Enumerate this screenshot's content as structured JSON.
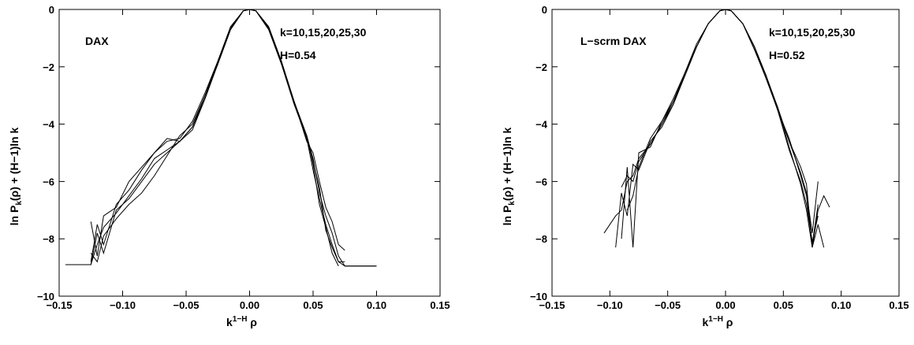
{
  "chart_data": [
    {
      "type": "line",
      "annotations": [
        "DAX",
        "k=10,15,20,25,30",
        "H=0.54"
      ],
      "xlabel": {
        "base": "k",
        "sup": "1−H",
        "rest": " ρ"
      },
      "ylabel": {
        "base": "ln P",
        "sub": "k",
        "rest": "(ρ) + (H−1)ln k"
      },
      "xlim": [
        -0.15,
        0.15
      ],
      "xticks": [
        {
          "value": -0.15,
          "label": "−0.15"
        },
        {
          "value": -0.1,
          "label": "−0.10"
        },
        {
          "value": -0.05,
          "label": "−0.05"
        },
        {
          "value": 0,
          "label": "0.00"
        },
        0.05,
        {
          "value": 0.1,
          "label": "0.10"
        },
        0.15
      ],
      "ylim": [
        -10,
        0
      ],
      "yticks": [
        {
          "value": -10,
          "label": "−10"
        },
        {
          "value": -8,
          "label": "−8"
        },
        {
          "value": -6,
          "label": "−6"
        },
        {
          "value": -4,
          "label": "−4"
        },
        {
          "value": -2,
          "label": "−2"
        },
        0
      ],
      "x": [
        -0.145,
        -0.125,
        -0.12,
        -0.115,
        -0.105,
        -0.095,
        -0.085,
        -0.075,
        -0.065,
        -0.055,
        -0.045,
        -0.035,
        -0.025,
        -0.015,
        -0.005,
        0,
        0.005,
        0.015,
        0.025,
        0.035,
        0.045,
        0.05,
        0.055,
        0.06,
        0.065,
        0.07,
        0.075,
        0.1
      ],
      "series": [
        {
          "color": "#000000",
          "values": [
            -8.9,
            -8.9,
            -7.8,
            -8.5,
            -7.0,
            -6.6,
            -6.0,
            -5.4,
            -5.0,
            -4.6,
            -4.1,
            -3.1,
            -1.9,
            -0.7,
            -0.05,
            0,
            -0.05,
            -0.6,
            -1.8,
            -3.2,
            -4.4,
            -5.2,
            -6.4,
            -7.2,
            -7.8,
            -8.6,
            -8.95,
            -8.95
          ]
        },
        {
          "color": "#000000",
          "values": [
            null,
            -8.8,
            -7.5,
            -8.2,
            -6.8,
            -6.3,
            -5.6,
            -5.0,
            -4.6,
            -4.5,
            -3.9,
            -2.9,
            -1.8,
            -0.6,
            -0.05,
            0,
            -0.05,
            -0.7,
            -1.9,
            -3.3,
            -4.5,
            -5.6,
            -6.6,
            -7.5,
            -8.2,
            -8.8,
            -8.8,
            null
          ]
        },
        {
          "color": "#000000",
          "values": [
            null,
            -8.5,
            -8.8,
            -7.9,
            -7.3,
            -6.8,
            -6.4,
            -5.8,
            -5.1,
            -4.4,
            -4.0,
            -3.0,
            -1.8,
            -0.65,
            -0.05,
            0,
            -0.05,
            -0.65,
            -1.8,
            -3.2,
            -4.6,
            -5.0,
            -6.0,
            -6.9,
            -7.4,
            -8.2,
            -8.4,
            null
          ]
        },
        {
          "color": "#000000",
          "values": [
            -8.9,
            -8.9,
            -8.2,
            -7.6,
            -7.1,
            -6.5,
            -5.9,
            -5.2,
            -4.9,
            -4.6,
            -4.2,
            -3.1,
            -1.85,
            -0.7,
            -0.05,
            0,
            -0.05,
            -0.6,
            -1.8,
            -3.25,
            -4.4,
            -5.4,
            -6.8,
            -7.6,
            -8.5,
            -8.95,
            null,
            null
          ]
        },
        {
          "color": "#000000",
          "values": [
            null,
            -7.4,
            -8.6,
            -7.2,
            -6.9,
            -6.0,
            -5.5,
            -5.0,
            -4.5,
            -4.6,
            -4.1,
            -3.0,
            -1.9,
            -0.7,
            -0.05,
            0,
            -0.05,
            -0.7,
            -1.85,
            -3.2,
            -4.5,
            -5.3,
            -6.2,
            -7.7,
            -8.3,
            -8.8,
            -8.95,
            -8.95
          ]
        }
      ]
    },
    {
      "type": "line",
      "annotations": [
        "L−scrm DAX",
        "k=10,15,20,25,30",
        "H=0.52"
      ],
      "xlabel": {
        "base": "k",
        "sup": "1−H",
        "rest": " ρ"
      },
      "ylabel": {
        "base": "ln P",
        "sub": "k",
        "rest": "(ρ) + (H−1)ln k"
      },
      "xlim": [
        -0.15,
        0.15
      ],
      "xticks": [
        {
          "value": -0.15,
          "label": "−0.15"
        },
        {
          "value": -0.1,
          "label": "−0.10"
        },
        {
          "value": -0.05,
          "label": "−0.05"
        },
        {
          "value": 0,
          "label": "0.00"
        },
        0.05,
        {
          "value": 0.1,
          "label": "0.10"
        },
        0.15
      ],
      "ylim": [
        -10,
        0
      ],
      "yticks": [
        {
          "value": -10,
          "label": "−10"
        },
        {
          "value": -8,
          "label": "−8"
        },
        {
          "value": -6,
          "label": "−6"
        },
        {
          "value": -4,
          "label": "−4"
        },
        {
          "value": -2,
          "label": "−2"
        },
        0
      ],
      "x": [
        -0.105,
        -0.095,
        -0.09,
        -0.085,
        -0.08,
        -0.075,
        -0.065,
        -0.055,
        -0.045,
        -0.035,
        -0.025,
        -0.015,
        -0.005,
        0,
        0.005,
        0.015,
        0.025,
        0.035,
        0.045,
        0.055,
        0.065,
        0.07,
        0.075,
        0.08,
        0.085,
        0.09
      ],
      "series": [
        {
          "color": "#000000",
          "values": [
            -7.8,
            -7.2,
            -7.0,
            -6.0,
            -5.8,
            -5.2,
            -4.7,
            -4.0,
            -3.2,
            -2.2,
            -1.3,
            -0.5,
            -0.05,
            0,
            -0.05,
            -0.5,
            -1.3,
            -2.3,
            -3.4,
            -4.6,
            -5.5,
            -6.1,
            -8.3,
            -7.0,
            -6.5,
            -6.9
          ]
        },
        {
          "color": "#000000",
          "values": [
            null,
            -8.3,
            -6.4,
            -7.2,
            -5.4,
            -5.6,
            -4.6,
            -4.1,
            -3.3,
            -2.2,
            -1.3,
            -0.5,
            -0.05,
            0,
            -0.05,
            -0.5,
            -1.4,
            -2.3,
            -3.5,
            -4.5,
            -5.8,
            -6.5,
            -8.2,
            -6.8,
            null,
            null
          ]
        },
        {
          "color": "#000000",
          "values": [
            null,
            null,
            -8.0,
            -5.5,
            -8.3,
            -5.0,
            -4.8,
            -3.9,
            -3.2,
            -2.3,
            -1.3,
            -0.5,
            -0.05,
            0,
            -0.05,
            -0.5,
            -1.3,
            -2.4,
            -3.4,
            -4.8,
            -6.1,
            -7.0,
            -8.3,
            -7.5,
            -8.3,
            null
          ]
        },
        {
          "color": "#000000",
          "values": [
            null,
            null,
            null,
            -7.0,
            -6.5,
            -5.5,
            -4.5,
            -3.9,
            -3.1,
            -2.2,
            -1.2,
            -0.5,
            -0.05,
            0,
            -0.05,
            -0.5,
            -1.3,
            -2.3,
            -3.5,
            -4.6,
            -5.7,
            -6.4,
            -7.8,
            -6.0,
            null,
            null
          ]
        },
        {
          "color": "#000000",
          "values": [
            null,
            null,
            -6.2,
            -5.8,
            -6.0,
            -5.3,
            -4.7,
            -4.0,
            -3.3,
            -2.3,
            -1.3,
            -0.5,
            -0.05,
            0,
            -0.05,
            -0.5,
            -1.4,
            -2.4,
            -3.5,
            -4.9,
            -6.0,
            -6.8,
            -8.1,
            -7.2,
            null,
            null
          ]
        }
      ]
    }
  ]
}
